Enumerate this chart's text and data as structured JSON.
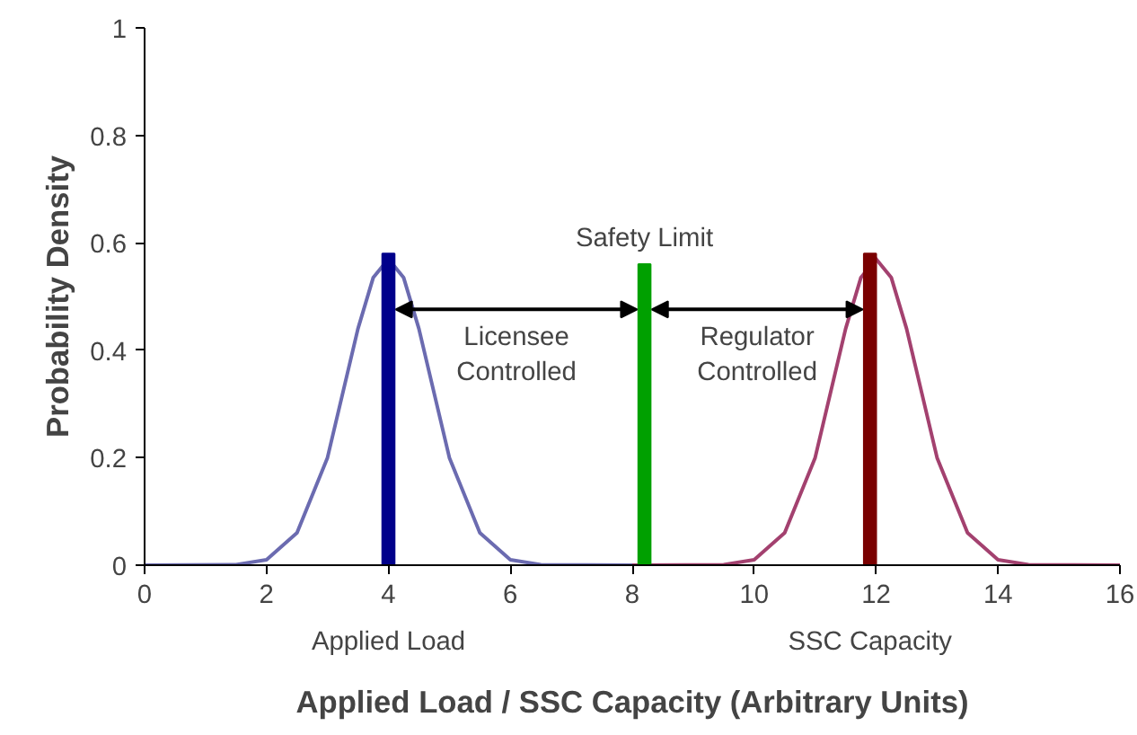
{
  "chart_data": {
    "type": "line",
    "xlabel": "Applied Load / SSC Capacity (Arbitrary Units)",
    "ylabel": "Probability Density",
    "xlim": [
      0,
      16
    ],
    "ylim": [
      0,
      1
    ],
    "xticks": [
      0,
      2,
      4,
      6,
      8,
      10,
      12,
      14,
      16
    ],
    "yticks": [
      0,
      0.2,
      0.4,
      0.6,
      0.8,
      1
    ],
    "grid": false,
    "marker": "none",
    "line_style": "solid",
    "series": [
      {
        "color": "#6b6bb0",
        "x": [
          0,
          1.5,
          2,
          2.5,
          3,
          3.25,
          3.5,
          3.75,
          4,
          4.25,
          4.5,
          4.75,
          5,
          5.5,
          6,
          6.5,
          8
        ],
        "values": [
          0,
          0.001,
          0.01,
          0.06,
          0.2,
          0.32,
          0.44,
          0.535,
          0.57,
          0.535,
          0.44,
          0.32,
          0.2,
          0.06,
          0.01,
          0.001,
          0
        ]
      },
      {
        "color": "#a3416f",
        "x": [
          8,
          9.5,
          10,
          10.5,
          11,
          11.25,
          11.5,
          11.75,
          12,
          12.25,
          12.5,
          12.75,
          13,
          13.5,
          14,
          14.5,
          16
        ],
        "values": [
          0,
          0.001,
          0.01,
          0.06,
          0.2,
          0.32,
          0.44,
          0.535,
          0.57,
          0.535,
          0.44,
          0.32,
          0.2,
          0.06,
          0.01,
          0.001,
          0
        ]
      },
      {
        "type": "bar",
        "color": "#00008b",
        "x": [
          4
        ],
        "values": [
          0.58
        ]
      },
      {
        "type": "bar",
        "color": "#00a000",
        "x": [
          8.2
        ],
        "values": [
          0.56
        ]
      },
      {
        "type": "bar",
        "color": "#7a0000",
        "x": [
          11.9
        ],
        "values": [
          0.58
        ]
      }
    ],
    "annotations": [
      "Safety Limit",
      "Licensee\nControlled",
      "Regulator\nControlled",
      "Applied Load",
      "SSC Capacity"
    ]
  }
}
